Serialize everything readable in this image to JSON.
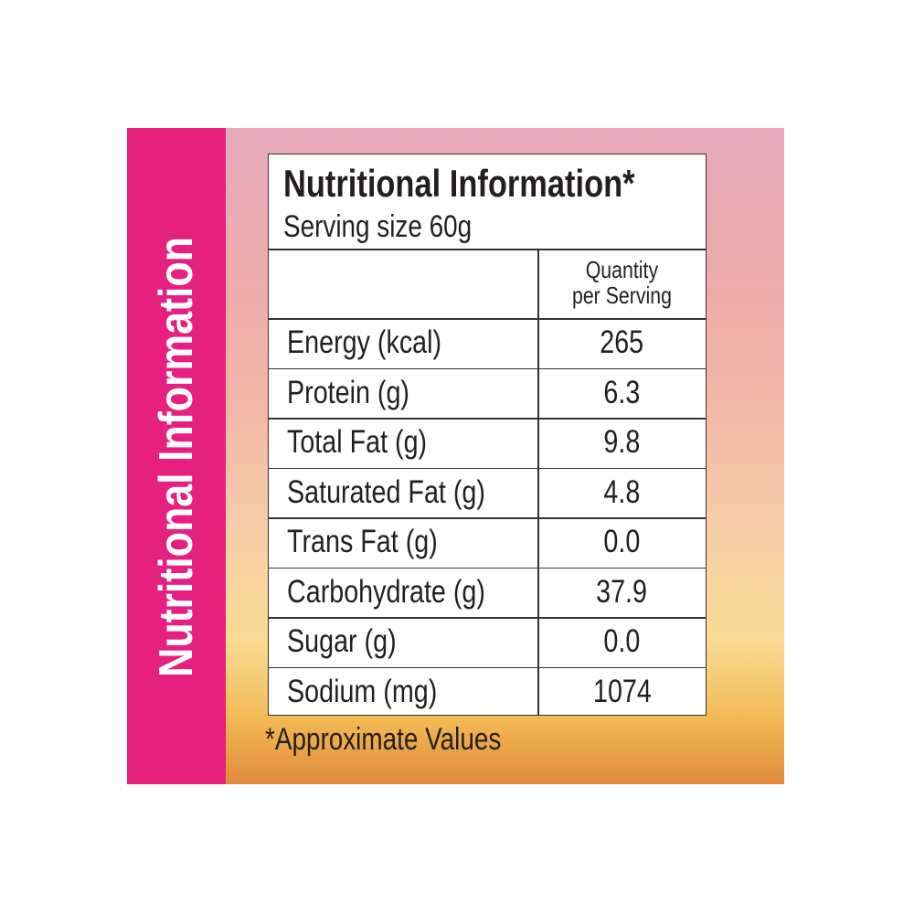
{
  "banner": "Nutritional Information",
  "table": {
    "title": "Nutritional Information*",
    "serving": "Serving size 60g",
    "header": {
      "quantity_line1": "Quantity",
      "quantity_line2": "per Serving"
    },
    "rows": [
      [
        "Energy (kcal)",
        "265"
      ],
      [
        "Protein (g)",
        "6.3"
      ],
      [
        "Total Fat (g)",
        "9.8"
      ],
      [
        "Saturated Fat (g)",
        "4.8"
      ],
      [
        "Trans Fat (g)",
        "0.0"
      ],
      [
        "Carbohydrate (g)",
        "37.9"
      ],
      [
        "Sugar (g)",
        "0.0"
      ],
      [
        "Sodium (mg)",
        "1074"
      ]
    ]
  },
  "footnote": "*Approximate Values"
}
